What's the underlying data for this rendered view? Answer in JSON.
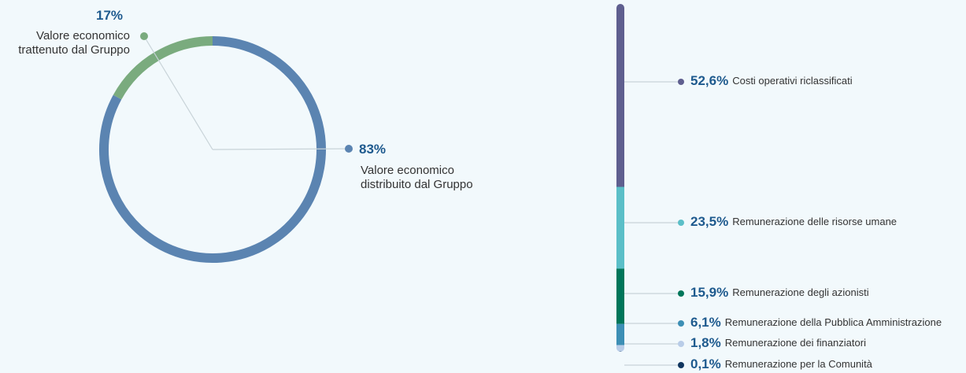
{
  "chart_data": [
    {
      "type": "donut",
      "categories": [
        "Valore economico distribuito dal Gruppo",
        "Valore economico trattenuto dal Gruppo"
      ],
      "values": [
        83,
        17
      ],
      "value_labels": [
        "83%",
        "17%"
      ],
      "colors": [
        "#5b84b1",
        "#7aab7e"
      ]
    },
    {
      "type": "stacked-bar",
      "categories": [
        "Costi operativi riclassificati",
        "Remunerazione delle risorse umane",
        "Remunerazione degli azionisti",
        "Remunerazione della Pubblica Amministrazione",
        "Remunerazione dei finanziatori",
        "Remunerazione per la Comunità"
      ],
      "values": [
        52.6,
        23.5,
        15.9,
        6.1,
        1.8,
        0.1
      ],
      "value_labels": [
        "52,6%",
        "23,5%",
        "15,9%",
        "6,1%",
        "1,8%",
        "0,1%"
      ],
      "colors": [
        "#5f5f8f",
        "#5bbfc8",
        "#00765a",
        "#3d8fb5",
        "#b9cde8",
        "#10365f"
      ]
    }
  ]
}
